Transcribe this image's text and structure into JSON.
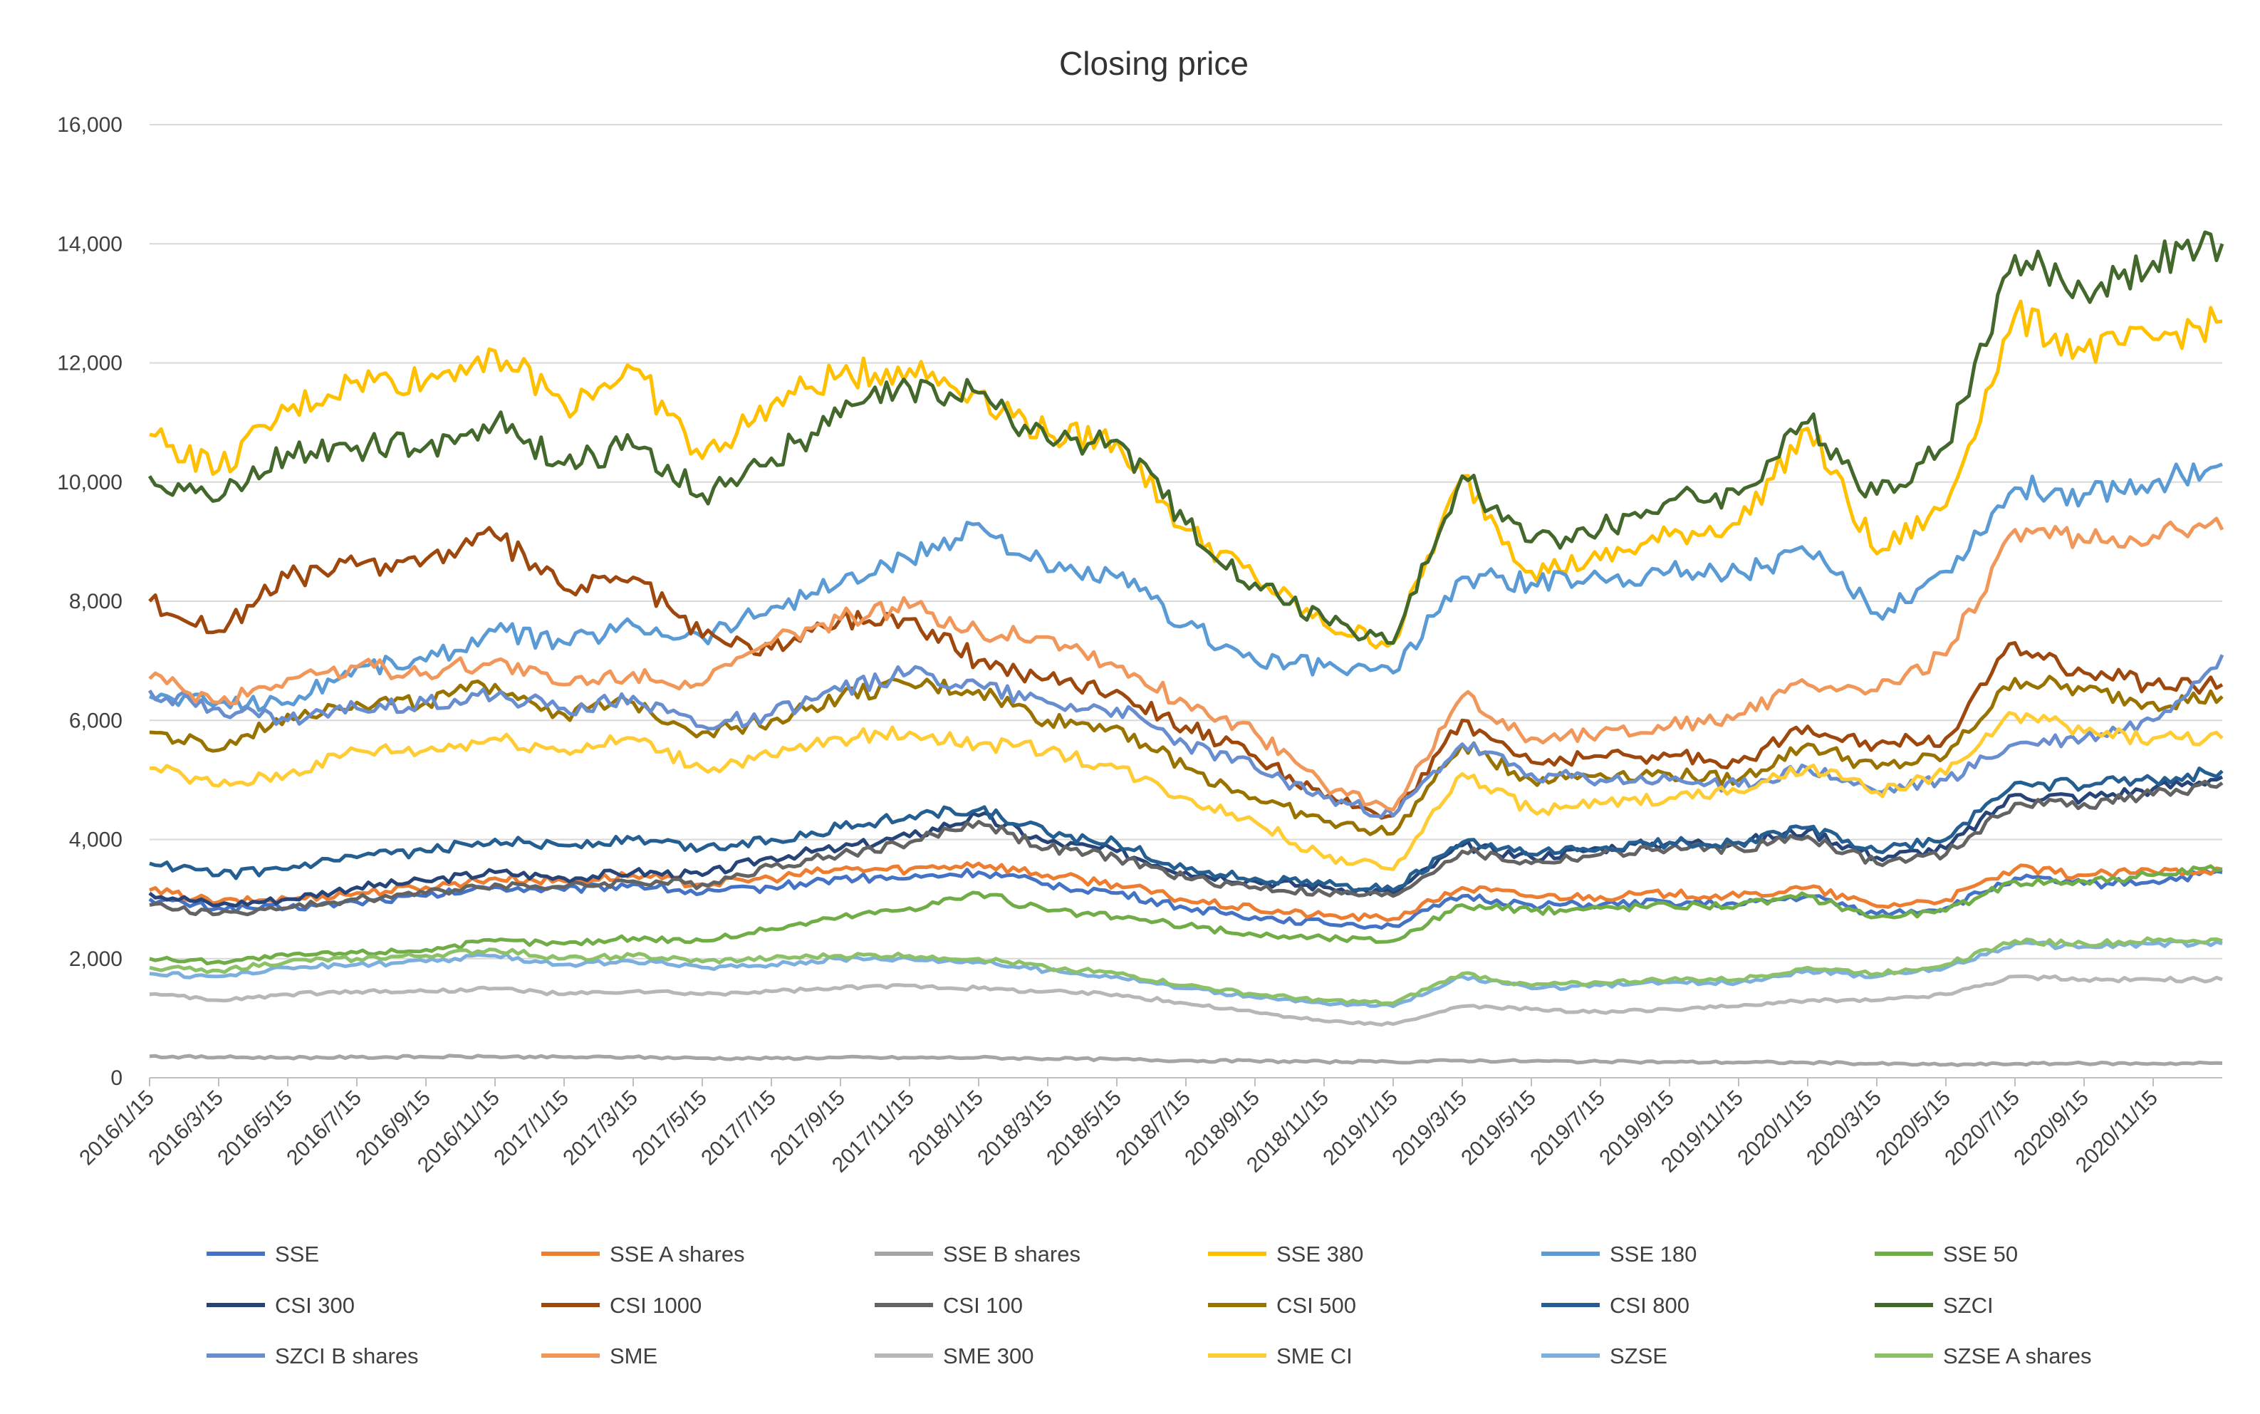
{
  "chart_data": {
    "type": "line",
    "title": "Closing price",
    "xlabel": "",
    "ylabel": "",
    "ylim": [
      0,
      16000
    ],
    "y_ticks": [
      0,
      2000,
      4000,
      6000,
      8000,
      10000,
      12000,
      14000,
      16000
    ],
    "y_tick_labels": [
      "0",
      "2,000",
      "4,000",
      "6,000",
      "8,000",
      "10,000",
      "12,000",
      "14,000",
      "16,000"
    ],
    "x_tick_labels": [
      "2016/1/15",
      "2016/3/15",
      "2016/5/15",
      "2016/7/15",
      "2016/9/15",
      "2016/11/15",
      "2017/1/15",
      "2017/3/15",
      "2017/5/15",
      "2017/7/15",
      "2017/9/15",
      "2017/11/15",
      "2018/1/15",
      "2018/3/15",
      "2018/5/15",
      "2018/7/15",
      "2018/9/15",
      "2018/11/15",
      "2019/1/15",
      "2019/3/15",
      "2019/5/15",
      "2019/7/15",
      "2019/9/15",
      "2019/11/15",
      "2020/1/15",
      "2020/3/15",
      "2020/5/15",
      "2020/7/15",
      "2020/9/15",
      "2020/11/15"
    ],
    "grid": "horizontal",
    "legend_position": "bottom",
    "x": [
      "2016/1/15",
      "2016/3/15",
      "2016/5/15",
      "2016/7/15",
      "2016/9/15",
      "2016/11/15",
      "2017/1/15",
      "2017/3/15",
      "2017/5/15",
      "2017/7/15",
      "2017/9/15",
      "2017/11/15",
      "2018/1/15",
      "2018/3/15",
      "2018/5/15",
      "2018/7/15",
      "2018/9/15",
      "2018/11/15",
      "2019/1/15",
      "2019/3/15",
      "2019/5/15",
      "2019/7/15",
      "2019/9/15",
      "2019/11/15",
      "2020/1/15",
      "2020/3/15",
      "2020/5/15",
      "2020/7/15",
      "2020/9/15",
      "2020/11/15",
      "2020/12/31"
    ],
    "series": [
      {
        "name": "SSE",
        "color": "#4472C4",
        "values": [
          3000,
          2850,
          2850,
          2950,
          3050,
          3200,
          3150,
          3250,
          3100,
          3200,
          3350,
          3350,
          3450,
          3250,
          3100,
          2850,
          2700,
          2600,
          2550,
          3050,
          2900,
          2900,
          2950,
          2900,
          3050,
          2750,
          2850,
          3350,
          3250,
          3300,
          3450
        ]
      },
      {
        "name": "SSE A shares",
        "color": "#ED7D31",
        "values": [
          3150,
          2950,
          3000,
          3100,
          3200,
          3350,
          3300,
          3400,
          3250,
          3350,
          3500,
          3500,
          3600,
          3400,
          3250,
          2980,
          2830,
          2720,
          2670,
          3190,
          3050,
          3040,
          3090,
          3040,
          3190,
          2880,
          2990,
          3500,
          3400,
          3460,
          3500
        ]
      },
      {
        "name": "SSE B shares",
        "color": "#A5A5A5",
        "values": [
          360,
          345,
          340,
          345,
          350,
          355,
          345,
          345,
          330,
          325,
          340,
          335,
          340,
          320,
          310,
          290,
          280,
          270,
          265,
          290,
          280,
          270,
          265,
          260,
          255,
          235,
          220,
          235,
          240,
          240,
          245
        ]
      },
      {
        "name": "SSE 380",
        "color": "#FFC000",
        "values": [
          10800,
          10200,
          11200,
          11700,
          11700,
          12200,
          11300,
          11900,
          10400,
          11300,
          11800,
          11900,
          11500,
          10800,
          10700,
          9200,
          8400,
          7600,
          7300,
          10100,
          8500,
          8700,
          9100,
          9300,
          10900,
          8800,
          9600,
          12800,
          12200,
          12400,
          12700
        ]
      },
      {
        "name": "SSE 180",
        "color": "#5B9BD5",
        "values": [
          6400,
          6300,
          6300,
          6900,
          7000,
          7500,
          7300,
          7600,
          7400,
          7900,
          8300,
          8700,
          9300,
          8500,
          8400,
          7600,
          7000,
          6900,
          6800,
          8400,
          8300,
          8400,
          8500,
          8500,
          8800,
          7800,
          8500,
          9900,
          9800,
          10000,
          10300
        ]
      },
      {
        "name": "SSE 50",
        "color": "#70AD47",
        "values": [
          2000,
          1950,
          2050,
          2100,
          2150,
          2300,
          2250,
          2350,
          2300,
          2500,
          2700,
          2850,
          3100,
          2800,
          2700,
          2550,
          2400,
          2350,
          2300,
          2900,
          2800,
          2850,
          2900,
          2900,
          3050,
          2700,
          2800,
          3300,
          3300,
          3400,
          3500
        ]
      },
      {
        "name": "CSI 300",
        "color": "#264478",
        "values": [
          3100,
          2900,
          3000,
          3200,
          3300,
          3450,
          3350,
          3450,
          3400,
          3700,
          3850,
          4050,
          4400,
          3950,
          3800,
          3450,
          3300,
          3200,
          3100,
          3900,
          3700,
          3850,
          3950,
          3950,
          4150,
          3700,
          3850,
          4750,
          4700,
          4850,
          5050
        ]
      },
      {
        "name": "CSI 1000",
        "color": "#9E480E",
        "values": [
          8000,
          7500,
          8400,
          8600,
          8700,
          9100,
          8200,
          8400,
          7400,
          7200,
          7700,
          7700,
          7000,
          6700,
          6500,
          5900,
          5400,
          4700,
          4400,
          6000,
          5300,
          5400,
          5400,
          5300,
          5900,
          5600,
          5700,
          7300,
          6800,
          6600,
          6600
        ]
      },
      {
        "name": "CSI 100",
        "color": "#636363",
        "values": [
          2900,
          2750,
          2850,
          3000,
          3100,
          3250,
          3200,
          3300,
          3250,
          3550,
          3750,
          3950,
          4300,
          3850,
          3700,
          3350,
          3200,
          3100,
          3050,
          3800,
          3600,
          3750,
          3850,
          3850,
          4050,
          3600,
          3750,
          4600,
          4600,
          4750,
          4950
        ]
      },
      {
        "name": "CSI 500",
        "color": "#997300",
        "values": [
          5800,
          5500,
          6100,
          6300,
          6300,
          6600,
          6100,
          6300,
          5800,
          6000,
          6400,
          6600,
          6500,
          6000,
          5900,
          5200,
          4700,
          4300,
          4100,
          5600,
          5000,
          5100,
          5100,
          5000,
          5600,
          5200,
          5400,
          6700,
          6500,
          6300,
          6400
        ]
      },
      {
        "name": "CSI 800",
        "color": "#255E91",
        "values": [
          3600,
          3400,
          3500,
          3700,
          3800,
          4000,
          3900,
          4000,
          3850,
          4000,
          4200,
          4400,
          4500,
          4100,
          3950,
          3500,
          3350,
          3250,
          3150,
          3950,
          3750,
          3850,
          3950,
          3950,
          4200,
          3800,
          4000,
          4950,
          4900,
          5000,
          5150
        ]
      },
      {
        "name": "SZCI",
        "color": "#43682B",
        "values": [
          10100,
          9700,
          10500,
          10600,
          10600,
          11000,
          10300,
          10600,
          9800,
          10400,
          11100,
          11600,
          11500,
          10700,
          10700,
          9300,
          8300,
          7700,
          7300,
          10100,
          9000,
          9200,
          9700,
          9800,
          11000,
          9800,
          10600,
          13800,
          13200,
          13700,
          14000
        ]
      },
      {
        "name": "SZCI B shares",
        "color": "#698ED0",
        "values": [
          6500,
          6200,
          6000,
          6200,
          6300,
          6400,
          6200,
          6400,
          5900,
          6100,
          6500,
          6800,
          6600,
          6300,
          6200,
          5600,
          5200,
          4700,
          4400,
          5600,
          5100,
          5000,
          5000,
          4900,
          5200,
          4800,
          5000,
          5600,
          5700,
          6000,
          7100
        ]
      },
      {
        "name": "SME",
        "color": "#F1975A",
        "values": [
          6700,
          6300,
          6700,
          6900,
          6800,
          7000,
          6600,
          6800,
          6600,
          7300,
          7700,
          7900,
          7500,
          7400,
          6900,
          6300,
          5800,
          4900,
          4500,
          6400,
          5700,
          5800,
          5900,
          6100,
          6600,
          6500,
          7100,
          9200,
          9000,
          9100,
          9200
        ]
      },
      {
        "name": "SME 300",
        "color": "#B7B7B7",
        "values": [
          1400,
          1300,
          1400,
          1450,
          1450,
          1500,
          1400,
          1450,
          1400,
          1450,
          1500,
          1550,
          1500,
          1450,
          1400,
          1250,
          1100,
          950,
          900,
          1200,
          1150,
          1100,
          1150,
          1200,
          1300,
          1300,
          1400,
          1700,
          1650,
          1650,
          1650
        ]
      },
      {
        "name": "SME CI",
        "color": "#FFCD33",
        "values": [
          5200,
          4900,
          5100,
          5500,
          5500,
          5700,
          5500,
          5700,
          5200,
          5400,
          5700,
          5800,
          5600,
          5500,
          5200,
          4700,
          4300,
          3700,
          3500,
          5100,
          4500,
          4600,
          4700,
          4800,
          5200,
          4800,
          5100,
          6100,
          5800,
          5700,
          5700
        ]
      },
      {
        "name": "SZSE",
        "color": "#7CAFDD",
        "values": [
          1750,
          1700,
          1850,
          1900,
          1950,
          2050,
          1900,
          1950,
          1850,
          1900,
          2000,
          2000,
          1950,
          1800,
          1700,
          1500,
          1350,
          1250,
          1200,
          1700,
          1500,
          1550,
          1600,
          1600,
          1800,
          1700,
          1850,
          2250,
          2200,
          2250,
          2250
        ]
      },
      {
        "name": "SZSE A shares",
        "color": "#8CC168",
        "values": [
          1850,
          1800,
          1950,
          2000,
          2050,
          2150,
          2000,
          2050,
          1950,
          2000,
          2050,
          2050,
          2000,
          1850,
          1750,
          1550,
          1400,
          1300,
          1250,
          1750,
          1550,
          1600,
          1650,
          1650,
          1850,
          1750,
          1900,
          2300,
          2250,
          2300,
          2300
        ]
      }
    ]
  }
}
